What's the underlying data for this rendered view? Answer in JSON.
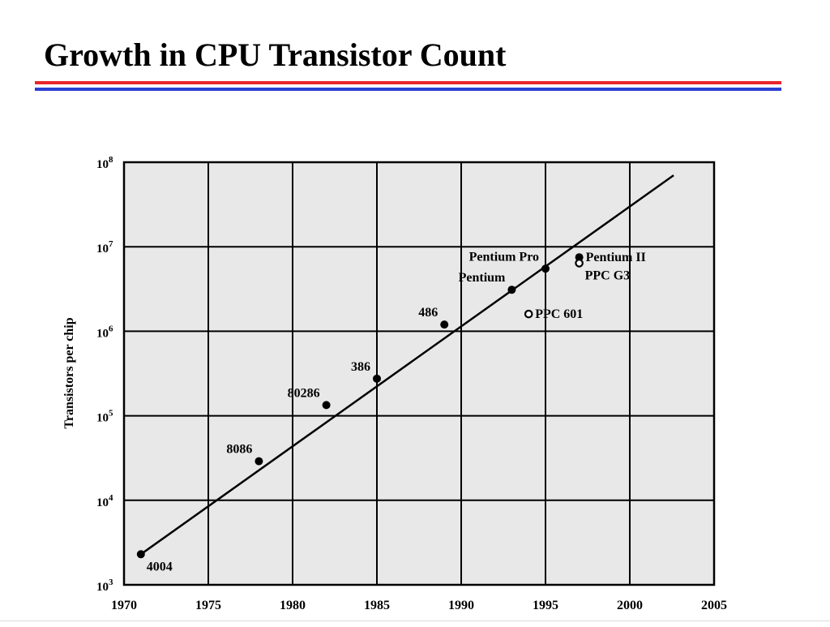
{
  "slide": {
    "title": "Growth in CPU Transistor Count",
    "rule_colors": [
      "#e8262b",
      "#2a3fd1"
    ]
  },
  "chart_data": {
    "type": "scatter",
    "title": "",
    "xlabel": "",
    "ylabel": "Transistors per chip",
    "xlim": [
      1970,
      2005
    ],
    "ylim": [
      1000,
      100000000
    ],
    "y_scale": "log",
    "grid": true,
    "x_ticks": [
      1970,
      1975,
      1980,
      1985,
      1990,
      1995,
      2000,
      2005
    ],
    "y_ticks": [
      {
        "base": "10",
        "exp": "3"
      },
      {
        "base": "10",
        "exp": "4"
      },
      {
        "base": "10",
        "exp": "5"
      },
      {
        "base": "10",
        "exp": "6"
      },
      {
        "base": "10",
        "exp": "7"
      },
      {
        "base": "10",
        "exp": "8"
      }
    ],
    "colors": {
      "plot_bg": "#e8e8e8",
      "marks": "#000000"
    },
    "trend_line": {
      "x": [
        1971,
        2002.6
      ],
      "y": [
        2300,
        70000000
      ]
    },
    "points": [
      {
        "x": 1971,
        "y": 2300,
        "label": "4004",
        "filled": true,
        "label_pos": "below-right"
      },
      {
        "x": 1978,
        "y": 29000,
        "label": "8086",
        "filled": true,
        "label_pos": "above-left"
      },
      {
        "x": 1982,
        "y": 134000,
        "label": "80286",
        "filled": true,
        "label_pos": "above-left"
      },
      {
        "x": 1985,
        "y": 275000,
        "label": "386",
        "filled": true,
        "label_pos": "above-left"
      },
      {
        "x": 1989,
        "y": 1200000,
        "label": "486",
        "filled": true,
        "label_pos": "above-left"
      },
      {
        "x": 1993,
        "y": 3100000,
        "label": "Pentium",
        "filled": true,
        "label_pos": "above-left"
      },
      {
        "x": 1995,
        "y": 5500000,
        "label": "Pentium Pro",
        "filled": true,
        "label_pos": "above-left"
      },
      {
        "x": 1997,
        "y": 7500000,
        "label": "Pentium II",
        "filled": true,
        "label_pos": "right"
      },
      {
        "x": 1997,
        "y": 6400000,
        "label": "PPC G3",
        "filled": false,
        "label_pos": "below-right"
      },
      {
        "x": 1994,
        "y": 1600000,
        "label": "PPC 601",
        "filled": false,
        "label_pos": "right"
      }
    ]
  }
}
